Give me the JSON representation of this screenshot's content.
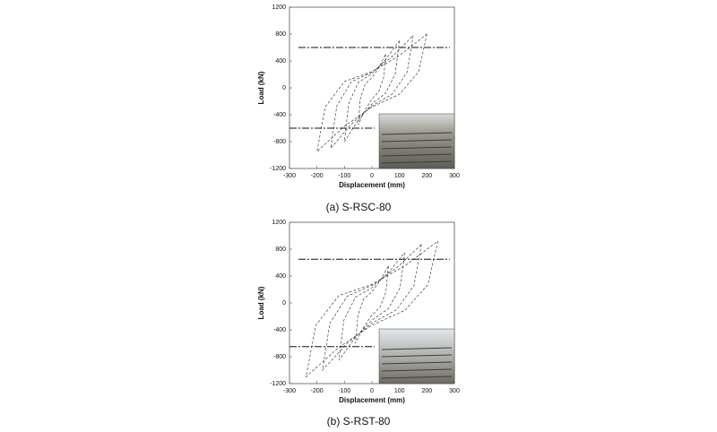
{
  "chart_data": [
    {
      "type": "line",
      "caption": "(a)  S-RSC-80",
      "xlabel": "Displacement (mm)",
      "ylabel": "Load (kN)",
      "xlim": [
        -300,
        300
      ],
      "ylim": [
        -1200,
        1200
      ],
      "xticks": [
        -300,
        -200,
        -100,
        0,
        100,
        200,
        300
      ],
      "yticks": [
        -1200,
        -800,
        -400,
        0,
        400,
        800,
        1200
      ],
      "reference_lines": [
        600,
        -600
      ],
      "series": [
        {
          "color": "#222222",
          "x": [
            50,
            42.5,
            25,
            0,
            -25,
            -50,
            -42.5,
            -25,
            0,
            25,
            50
          ],
          "values": [
            500,
            150,
            -55,
            -165,
            -330,
            -550,
            -165,
            55,
            150,
            300,
            500
          ]
        },
        {
          "color": "#222222",
          "x": [
            100,
            85,
            50,
            0,
            -50,
            -100,
            -85,
            -50,
            0,
            50,
            100
          ],
          "values": [
            700,
            210,
            -80,
            -240,
            -480,
            -800,
            -240,
            80,
            210,
            420,
            700
          ]
        },
        {
          "color": "#222222",
          "x": [
            150,
            128,
            75,
            0,
            -75,
            -150,
            -128,
            -75,
            0,
            75,
            150
          ],
          "values": [
            780,
            234,
            -90,
            -270,
            -540,
            -900,
            -270,
            90,
            234,
            468,
            780
          ]
        },
        {
          "color": "#222222",
          "x": [
            200,
            170,
            100,
            0,
            -100,
            -200,
            -170,
            -100,
            0,
            100,
            200
          ],
          "values": [
            800,
            240,
            -95,
            -285,
            -570,
            -950,
            -285,
            95,
            240,
            480,
            800
          ]
        }
      ]
    },
    {
      "type": "line",
      "caption": "(b)  S-RST-80",
      "xlabel": "Displacement (mm)",
      "ylabel": "Load (kN)",
      "xlim": [
        -300,
        300
      ],
      "ylim": [
        -1200,
        1200
      ],
      "xticks": [
        -300,
        -200,
        -100,
        0,
        100,
        200,
        300
      ],
      "yticks": [
        -1200,
        -800,
        -400,
        0,
        400,
        800,
        1200
      ],
      "reference_lines": [
        650,
        -650
      ],
      "series": [
        {
          "color": "#222222",
          "x": [
            60,
            51,
            30,
            0,
            -30,
            -60,
            -51,
            -30,
            0,
            30,
            60
          ],
          "values": [
            550,
            165,
            -60,
            -180,
            -360,
            -600,
            -180,
            60,
            165,
            330,
            550
          ]
        },
        {
          "color": "#222222",
          "x": [
            120,
            102,
            60,
            0,
            -60,
            -120,
            -102,
            -60,
            0,
            60,
            120
          ],
          "values": [
            750,
            225,
            -85,
            -255,
            -510,
            -850,
            -255,
            85,
            225,
            450,
            750
          ]
        },
        {
          "color": "#222222",
          "x": [
            180,
            153,
            90,
            0,
            -90,
            -180,
            -153,
            -90,
            0,
            90,
            180
          ],
          "values": [
            870,
            261,
            -100,
            -300,
            -600,
            -1000,
            -300,
            100,
            261,
            522,
            870
          ]
        },
        {
          "color": "#222222",
          "x": [
            240,
            204,
            120,
            0,
            -120,
            -240,
            -204,
            -120,
            0,
            120,
            240
          ],
          "values": [
            920,
            276,
            -110,
            -330,
            -660,
            -1100,
            -330,
            110,
            276,
            552,
            920
          ]
        }
      ]
    }
  ]
}
